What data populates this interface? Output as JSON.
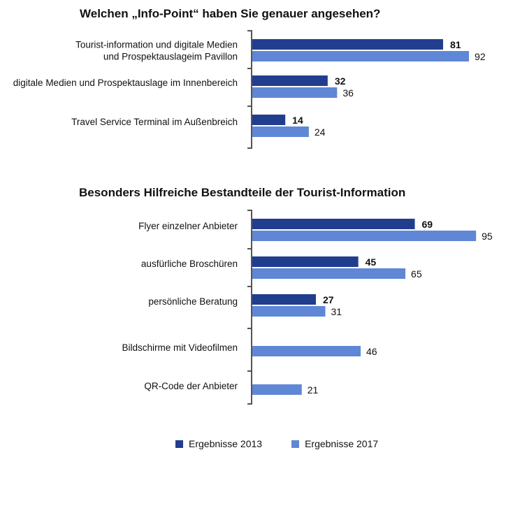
{
  "colors": {
    "series_2013": "#213e8e",
    "series_2017": "#5f87d6",
    "axis": "#555555"
  },
  "legend": {
    "items": [
      {
        "label": "Ergebnisse 2013"
      },
      {
        "label": "Ergebnisse 2017"
      }
    ]
  },
  "chart_data": [
    {
      "type": "bar",
      "orientation": "horizontal",
      "title": "Welchen „Info-Point“ haben Sie genauer angesehen?",
      "categories": [
        [
          "Tourist-information und digitale Medien",
          "und Prospektauslageim Pavillon"
        ],
        [
          "digitale Medien und Prospektauslage im Innenbereich"
        ],
        [
          "Travel Service Terminal im Außenbreich"
        ]
      ],
      "series": [
        {
          "name": "Ergebnisse 2013",
          "values": [
            81,
            32,
            14
          ]
        },
        {
          "name": "Ergebnisse 2017",
          "values": [
            92,
            36,
            24
          ]
        }
      ],
      "grid": false
    },
    {
      "type": "bar",
      "orientation": "horizontal",
      "title": "Besonders Hilfreiche Bestandteile der Tourist-Information",
      "categories": [
        [
          "Flyer einzelner Anbieter"
        ],
        [
          "ausfürliche Broschüren"
        ],
        [
          "persönliche Beratung"
        ],
        [
          "Bildschirme mit Videofilmen"
        ],
        [
          "QR-Code der Anbieter"
        ]
      ],
      "series": [
        {
          "name": "Ergebnisse 2013",
          "values": [
            69,
            45,
            27,
            null,
            null
          ]
        },
        {
          "name": "Ergebnisse 2017",
          "values": [
            95,
            65,
            31,
            46,
            21
          ]
        }
      ],
      "grid": false
    }
  ]
}
